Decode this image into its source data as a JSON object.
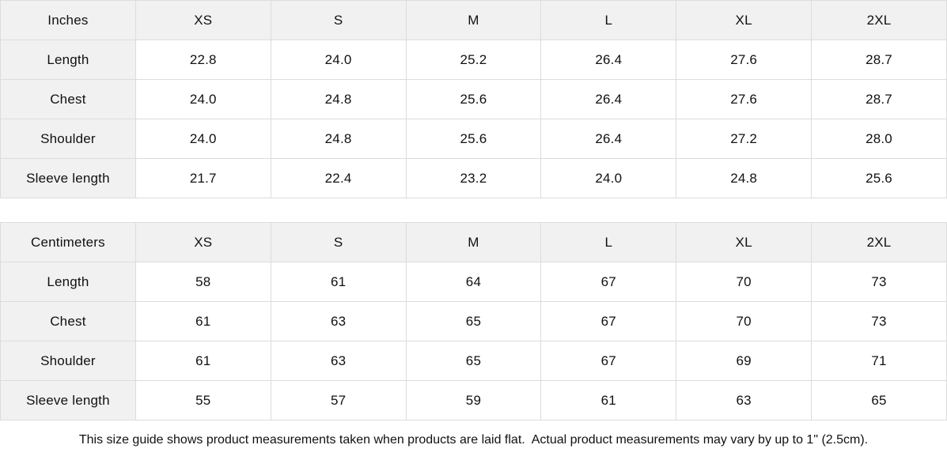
{
  "colors": {
    "header_bg": "#f1f1f1",
    "border": "#dcdcdc",
    "text": "#111111",
    "background": "#ffffff"
  },
  "size_columns": [
    "XS",
    "S",
    "M",
    "L",
    "XL",
    "2XL"
  ],
  "tables": [
    {
      "unit_label": "Inches",
      "rows": [
        {
          "label": "Length",
          "values": [
            "22.8",
            "24.0",
            "25.2",
            "26.4",
            "27.6",
            "28.7"
          ]
        },
        {
          "label": "Chest",
          "values": [
            "24.0",
            "24.8",
            "25.6",
            "26.4",
            "27.6",
            "28.7"
          ]
        },
        {
          "label": "Shoulder",
          "values": [
            "24.0",
            "24.8",
            "25.6",
            "26.4",
            "27.2",
            "28.0"
          ]
        },
        {
          "label": "Sleeve length",
          "values": [
            "21.7",
            "22.4",
            "23.2",
            "24.0",
            "24.8",
            "25.6"
          ]
        }
      ]
    },
    {
      "unit_label": "Centimeters",
      "rows": [
        {
          "label": "Length",
          "values": [
            "58",
            "61",
            "64",
            "67",
            "70",
            "73"
          ]
        },
        {
          "label": "Chest",
          "values": [
            "61",
            "63",
            "65",
            "67",
            "70",
            "73"
          ]
        },
        {
          "label": "Shoulder",
          "values": [
            "61",
            "63",
            "65",
            "67",
            "69",
            "71"
          ]
        },
        {
          "label": "Sleeve length",
          "values": [
            "55",
            "57",
            "59",
            "61",
            "63",
            "65"
          ]
        }
      ]
    }
  ],
  "footer": {
    "note": "This size guide shows product measurements taken when products are laid flat.  Actual product measurements may vary by up to 1\" (2.5cm)."
  }
}
